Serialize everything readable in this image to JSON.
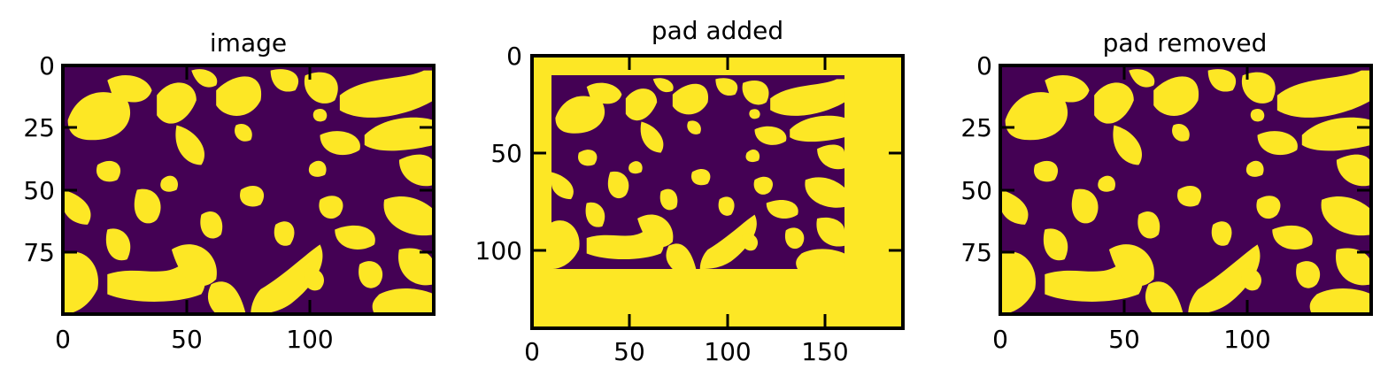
{
  "panels": [
    {
      "id": "image",
      "title": "image",
      "x_ticks": [
        "0",
        "50",
        "100"
      ],
      "y_ticks": [
        "0",
        "25",
        "50",
        "75"
      ],
      "x_range": [
        0,
        150
      ],
      "y_range": [
        0,
        100
      ]
    },
    {
      "id": "pad-added",
      "title": "pad added",
      "x_ticks": [
        "0",
        "50",
        "100",
        "150"
      ],
      "y_ticks": [
        "0",
        "50",
        "100"
      ],
      "x_range": [
        0,
        190
      ],
      "y_range": [
        0,
        140
      ]
    },
    {
      "id": "pad-removed",
      "title": "pad removed",
      "x_ticks": [
        "0",
        "50",
        "100"
      ],
      "y_ticks": [
        "0",
        "25",
        "50",
        "75"
      ],
      "x_range": [
        0,
        150
      ],
      "y_range": [
        0,
        100
      ]
    }
  ],
  "colors": {
    "background_phase": "#440154",
    "foreground_phase": "#fde725"
  }
}
